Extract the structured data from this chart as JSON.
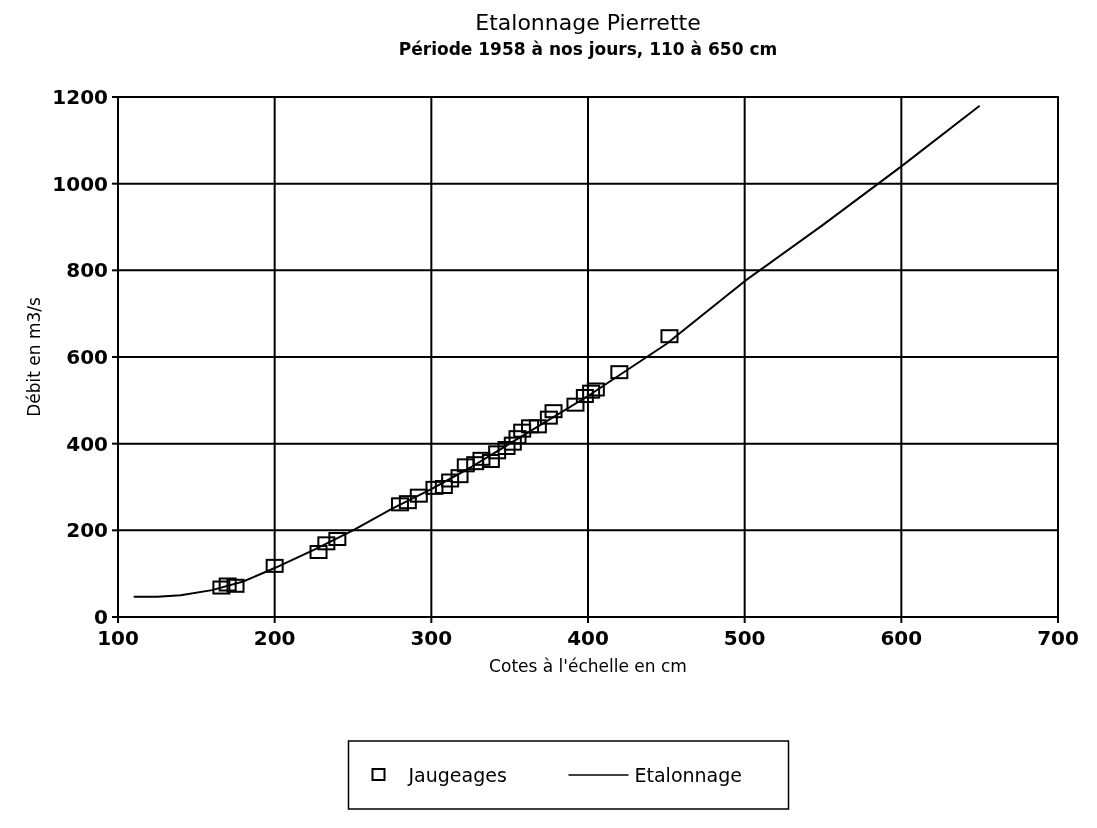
{
  "chart_data": {
    "type": "scatter",
    "title": "Etalonnage Pierrette",
    "subtitle": "Période  1958 à nos jours,  110 à 650 cm",
    "xlabel": "Cotes à l'échelle en cm",
    "ylabel": "Débit en m3/s",
    "xlim": [
      100,
      700
    ],
    "xticks": [
      100,
      200,
      300,
      400,
      500,
      600,
      700
    ],
    "ylim": [
      0,
      1200
    ],
    "yticks": [
      0,
      200,
      400,
      600,
      800,
      1000,
      1200
    ],
    "grid": true,
    "legend": "bottom",
    "series": [
      {
        "name": "Jaugeages",
        "marker": "square",
        "color": "#000000",
        "x": [
          166,
          170,
          175,
          200,
          228,
          233,
          240,
          280,
          285,
          292,
          302,
          308,
          312,
          318,
          322,
          328,
          332,
          338,
          342,
          348,
          352,
          355,
          358,
          363,
          368,
          375,
          378,
          392,
          398,
          402,
          405,
          420,
          452
        ],
        "values": [
          68,
          75,
          72,
          118,
          150,
          170,
          180,
          260,
          265,
          280,
          298,
          300,
          315,
          325,
          350,
          355,
          365,
          360,
          380,
          390,
          400,
          415,
          430,
          440,
          440,
          460,
          475,
          490,
          510,
          520,
          525,
          565,
          648
        ]
      },
      {
        "name": "Etalonnage",
        "type": "line",
        "line_style": "solid",
        "color": "#000000",
        "x": [
          110,
          125,
          140,
          160,
          180,
          200,
          225,
          250,
          275,
          300,
          325,
          350,
          375,
          400,
          425,
          450,
          500,
          550,
          600,
          650
        ],
        "values": [
          47,
          47,
          50,
          62,
          82,
          113,
          155,
          200,
          250,
          295,
          345,
          400,
          455,
          510,
          570,
          630,
          775,
          905,
          1040,
          1180
        ]
      }
    ]
  }
}
